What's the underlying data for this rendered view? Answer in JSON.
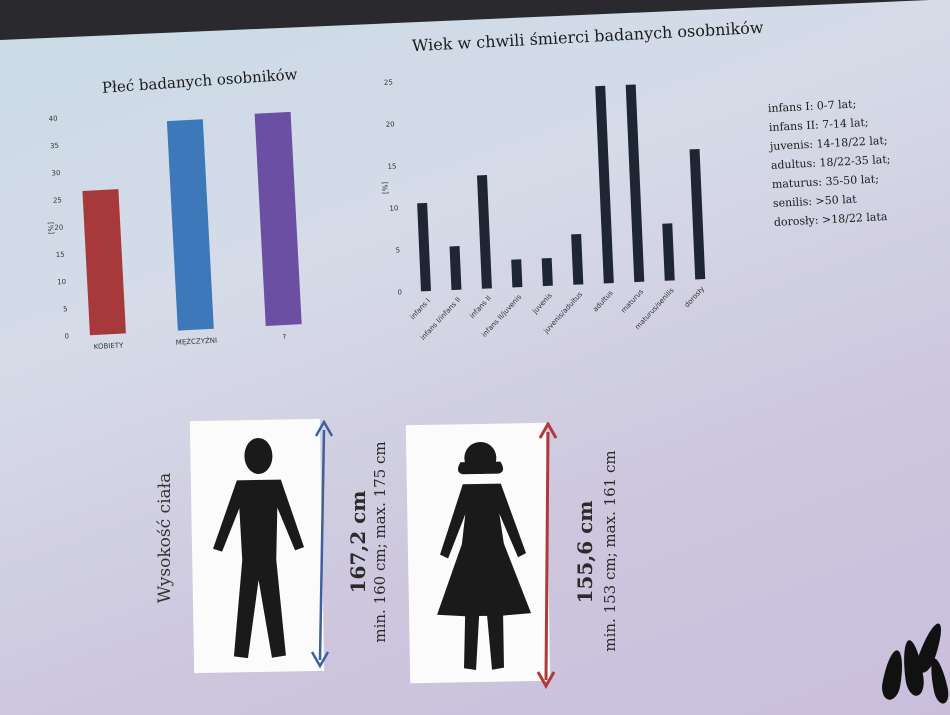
{
  "chart_data": [
    {
      "type": "bar",
      "title": "Płeć badanych osobników",
      "ylabel": "[%]",
      "ylim": [
        0,
        40
      ],
      "yticks": [
        0,
        5,
        10,
        15,
        20,
        25,
        30,
        35,
        40
      ],
      "categories": [
        "KOBIETY",
        "MĘŻCZYŹNI",
        "?"
      ],
      "values": [
        26.5,
        38.5,
        39
      ],
      "colors": [
        "#a8393a",
        "#3c78ba",
        "#6a4fa3"
      ]
    },
    {
      "type": "bar",
      "title": "Wiek w chwili śmierci badanych osobników",
      "ylabel": "[%]",
      "ylim": [
        0,
        25
      ],
      "yticks": [
        0,
        5,
        10,
        15,
        20,
        25
      ],
      "categories": [
        "infans I",
        "infans I/infans II",
        "infans II",
        "infans II/juvenis",
        "juvenis",
        "juvenis/adultus",
        "adultus",
        "maturus",
        "maturus/senilis",
        "dorosły"
      ],
      "values": [
        10.5,
        5.2,
        13.5,
        3.3,
        3.3,
        6.0,
        23.5,
        23.5,
        6.8,
        15.5
      ],
      "color": "#1e2533"
    }
  ],
  "legend": [
    "infans I: 0-7 lat;",
    "infans II: 7-14 lat;",
    "juvenis: 14-18/22 lat;",
    "adultus: 18/22-35 lat;",
    "maturus: 35-50 lat;",
    "senilis: >50 lat",
    "dorosły: >18/22 lata"
  ],
  "height_section": {
    "label": "Wysokość ciała",
    "male": {
      "height": "167,2 cm",
      "range": "min. 160 cm; max. 175 cm",
      "arrow_color": "#3f5f9e"
    },
    "female": {
      "height": "155,6 cm",
      "range": "min. 153 cm; max. 161 cm",
      "arrow_color": "#b03a3a"
    }
  }
}
